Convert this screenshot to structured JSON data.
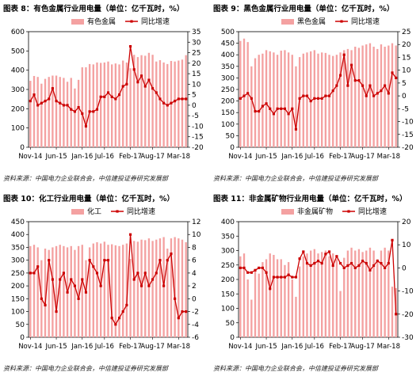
{
  "chart_data": [
    {
      "type": "bar",
      "title": "图表 8：有色金属行业用电量（单位：亿千瓦时，%）",
      "source": "资料来源：中国电力企业联合会，中信建投证券研究发展部",
      "xlabel": "",
      "ylabel": "",
      "x_tick_labels": [
        "Nov-14",
        "Jun-15",
        "Jan-16",
        "Jul-16",
        "Feb-17",
        "Aug-17",
        "Mar-18"
      ],
      "ylim": [
        0,
        600
      ],
      "yticks": [
        0,
        100,
        200,
        300,
        400,
        500,
        600
      ],
      "y2lim": [
        -20,
        35
      ],
      "y2ticks": [
        -20,
        -15,
        -10,
        -5,
        0,
        5,
        10,
        15,
        20,
        25,
        30,
        35
      ],
      "legend": "top",
      "series": [
        {
          "name": "有色金属",
          "kind": "bar",
          "axis": "left",
          "color": "#f4a1a1",
          "values": [
            345,
            370,
            365,
            330,
            355,
            365,
            372,
            372,
            365,
            360,
            340,
            360,
            305,
            350,
            415,
            415,
            432,
            430,
            440,
            438,
            440,
            445,
            430,
            435,
            430,
            450,
            440,
            410,
            480,
            468,
            478,
            475,
            490,
            480,
            445,
            452,
            440,
            432,
            448,
            445,
            450,
            455,
            478
          ]
        },
        {
          "name": "同比增速",
          "kind": "line",
          "axis": "right",
          "color": "#cc0000",
          "values": [
            2,
            5,
            0,
            1,
            2,
            3,
            8,
            2,
            1,
            0,
            0,
            -2,
            -3,
            -1,
            -4,
            -10,
            -3,
            -3,
            -2,
            4,
            4,
            6,
            4,
            3,
            5,
            9,
            10,
            28,
            17,
            11,
            14,
            9,
            12,
            8,
            6,
            3,
            1,
            0,
            1,
            2,
            3,
            3,
            3
          ]
        }
      ]
    },
    {
      "type": "bar",
      "title": "图表 9：黑色金属行业用电量（单位：亿千瓦时，%）",
      "source": "资料来源：中国电力企业联合会，中信建投证券研究发展部",
      "xlabel": "",
      "ylabel": "",
      "x_tick_labels": [
        "Nov-14",
        "Jun-15",
        "Jan-16",
        "Jul-16",
        "Feb-17",
        "Aug-17",
        "Mar-18"
      ],
      "ylim": [
        0,
        500
      ],
      "yticks": [
        0,
        50,
        100,
        150,
        200,
        250,
        300,
        350,
        400,
        450,
        500
      ],
      "y2lim": [
        -20,
        25
      ],
      "y2ticks": [
        -20,
        -15,
        -10,
        -5,
        0,
        5,
        10,
        15,
        20,
        25
      ],
      "legend": "top",
      "series": [
        {
          "name": "黑色金属",
          "kind": "bar",
          "axis": "left",
          "color": "#f4a1a1",
          "values": [
            460,
            470,
            455,
            350,
            385,
            400,
            405,
            420,
            415,
            410,
            400,
            418,
            420,
            410,
            400,
            350,
            390,
            405,
            410,
            415,
            420,
            405,
            410,
            408,
            400,
            395,
            400,
            410,
            420,
            425,
            420,
            435,
            430,
            440,
            445,
            450,
            435,
            425,
            445,
            435,
            440,
            450,
            440
          ]
        },
        {
          "name": "同比增速",
          "kind": "line",
          "axis": "right",
          "color": "#cc0000",
          "values": [
            -1,
            0,
            1,
            -1,
            -6,
            -6,
            -4,
            -3,
            -5,
            -7,
            -5,
            -5,
            -5,
            -7,
            -5,
            -13,
            -1,
            0,
            0,
            -2,
            -1,
            -1,
            -1,
            0,
            0,
            2,
            4,
            8,
            16,
            4,
            12,
            6,
            6,
            4,
            0,
            4,
            0,
            1,
            2,
            4,
            1,
            9,
            7
          ]
        }
      ]
    },
    {
      "type": "bar",
      "title": "图表 10：化工行业用电量（单位：亿千瓦时，%）",
      "source": "资料来源：中国电力企业联合会，中信建投证券研究发展部",
      "xlabel": "",
      "ylabel": "",
      "x_tick_labels": [
        "Nov-14",
        "Jun-15",
        "Jan-16",
        "Jul-16",
        "Feb-17",
        "Aug-17",
        "Mar-18"
      ],
      "ylim": [
        0,
        450
      ],
      "yticks": [
        0,
        50,
        100,
        150,
        200,
        250,
        300,
        350,
        400,
        450
      ],
      "y2lim": [
        -6,
        12
      ],
      "y2ticks": [
        -6,
        -4,
        -2,
        0,
        2,
        4,
        6,
        8,
        10,
        12
      ],
      "legend": "top",
      "series": [
        {
          "name": "化工",
          "kind": "bar",
          "axis": "left",
          "color": "#f4a1a1",
          "values": [
            355,
            360,
            350,
            300,
            345,
            340,
            350,
            355,
            360,
            355,
            350,
            355,
            340,
            355,
            360,
            300,
            350,
            365,
            370,
            365,
            372,
            360,
            362,
            358,
            355,
            360,
            365,
            305,
            375,
            372,
            380,
            378,
            385,
            375,
            380,
            385,
            390,
            345,
            385,
            390,
            385,
            380,
            370
          ]
        },
        {
          "name": "同比增速",
          "kind": "line",
          "axis": "right",
          "color": "#cc0000",
          "values": [
            4,
            4,
            5,
            0,
            -1,
            6,
            3,
            -2,
            3,
            4,
            1,
            3,
            2,
            0,
            3,
            1,
            6,
            5,
            4,
            2,
            6,
            6,
            -3,
            -4,
            -3,
            -2,
            -1,
            10,
            3,
            4,
            2,
            4,
            2,
            3,
            4,
            6,
            2,
            6,
            7,
            0,
            -3,
            -2,
            -2
          ]
        }
      ]
    },
    {
      "type": "bar",
      "title": "图表 11：非金属矿物行业用电量（单位：亿千瓦时，%）",
      "source": "资料来源：中国电力企业联合会，中信建投证券研究发展部",
      "xlabel": "",
      "ylabel": "",
      "x_tick_labels": [
        "Nov-14",
        "Jun-15",
        "Jan-16",
        "Jul-16",
        "Feb-17",
        "Aug-17",
        "Mar-18"
      ],
      "ylim": [
        0,
        400
      ],
      "yticks": [
        0,
        50,
        100,
        150,
        200,
        250,
        300,
        350,
        400
      ],
      "y2lim": [
        -30,
        20
      ],
      "y2ticks": [
        -30,
        -20,
        -10,
        0,
        10,
        20
      ],
      "legend": "top",
      "series": [
        {
          "name": "非金属矿物",
          "kind": "bar",
          "axis": "left",
          "color": "#f4a1a1",
          "values": [
            280,
            290,
            200,
            130,
            230,
            220,
            260,
            270,
            290,
            285,
            270,
            270,
            250,
            260,
            200,
            140,
            245,
            280,
            290,
            300,
            305,
            290,
            295,
            300,
            280,
            290,
            270,
            160,
            275,
            300,
            310,
            300,
            305,
            295,
            300,
            310,
            300,
            270,
            300,
            310,
            300,
            175,
            170
          ]
        },
        {
          "name": "同比增速",
          "kind": "line",
          "axis": "right",
          "color": "#cc0000",
          "values": [
            0,
            0,
            -2,
            -2,
            -1,
            0,
            0,
            -2,
            -9,
            -4,
            -4,
            -4,
            -4,
            -3,
            -4,
            -4,
            4,
            7,
            2,
            1,
            2,
            3,
            2,
            6,
            7,
            1,
            5,
            2,
            0,
            1,
            2,
            0,
            1,
            3,
            2,
            -1,
            1,
            3,
            2,
            0,
            2,
            12,
            -20
          ]
        }
      ]
    }
  ]
}
